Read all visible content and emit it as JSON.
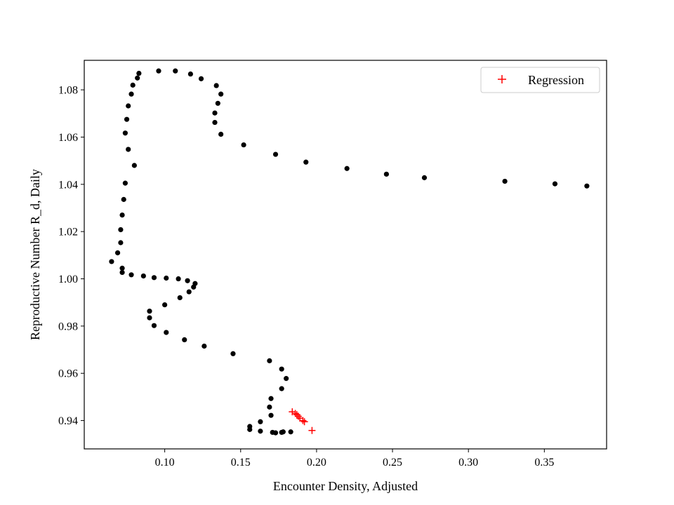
{
  "chart_data": {
    "type": "scatter",
    "xlabel": "Encounter Density, Adjusted",
    "ylabel": "Reproductive Number R_d, Daily",
    "xlim": [
      0.047,
      0.391
    ],
    "ylim": [
      0.928,
      1.0925
    ],
    "xticks": [
      0.1,
      0.15,
      0.2,
      0.25,
      0.3,
      0.35
    ],
    "xtick_labels": [
      "0.10",
      "0.15",
      "0.20",
      "0.25",
      "0.30",
      "0.35"
    ],
    "yticks": [
      0.94,
      0.96,
      0.98,
      1.0,
      1.02,
      1.04,
      1.06,
      1.08
    ],
    "ytick_labels": [
      "0.94",
      "0.96",
      "0.98",
      "1.00",
      "1.02",
      "1.04",
      "1.06",
      "1.08"
    ],
    "grid": false,
    "legend_position": "top-right",
    "series": [
      {
        "marker": "dot",
        "color": "#000000",
        "points": [
          [
            0.378,
            1.0393
          ],
          [
            0.357,
            1.0402
          ],
          [
            0.324,
            1.0413
          ],
          [
            0.271,
            1.0428
          ],
          [
            0.246,
            1.0443
          ],
          [
            0.22,
            1.0467
          ],
          [
            0.193,
            1.0494
          ],
          [
            0.173,
            1.0527
          ],
          [
            0.152,
            1.0567
          ],
          [
            0.137,
            1.0612
          ],
          [
            0.133,
            1.0662
          ],
          [
            0.133,
            1.0702
          ],
          [
            0.135,
            1.0743
          ],
          [
            0.137,
            1.0782
          ],
          [
            0.134,
            1.0818
          ],
          [
            0.124,
            1.0847
          ],
          [
            0.117,
            1.0867
          ],
          [
            0.107,
            1.088
          ],
          [
            0.096,
            1.088
          ],
          [
            0.083,
            1.087
          ],
          [
            0.082,
            1.085
          ],
          [
            0.079,
            1.082
          ],
          [
            0.078,
            1.0782
          ],
          [
            0.076,
            1.0732
          ],
          [
            0.075,
            1.0675
          ],
          [
            0.074,
            1.0617
          ],
          [
            0.076,
            1.0548
          ],
          [
            0.08,
            1.048
          ],
          [
            0.074,
            1.0405
          ],
          [
            0.073,
            1.0336
          ],
          [
            0.072,
            1.027
          ],
          [
            0.071,
            1.0208
          ],
          [
            0.071,
            1.0153
          ],
          [
            0.069,
            1.011
          ],
          [
            0.065,
            1.0073
          ],
          [
            0.072,
            1.0045
          ],
          [
            0.072,
            1.0027
          ],
          [
            0.078,
            1.0017
          ],
          [
            0.086,
            1.0012
          ],
          [
            0.093,
            1.0005
          ],
          [
            0.101,
            1.0003
          ],
          [
            0.109,
            1.0
          ],
          [
            0.115,
            0.9992
          ],
          [
            0.12,
            0.998
          ],
          [
            0.119,
            0.9965
          ],
          [
            0.116,
            0.9945
          ],
          [
            0.11,
            0.992
          ],
          [
            0.1,
            0.989
          ],
          [
            0.09,
            0.9863
          ],
          [
            0.09,
            0.9835
          ],
          [
            0.093,
            0.9802
          ],
          [
            0.101,
            0.9773
          ],
          [
            0.113,
            0.9742
          ],
          [
            0.126,
            0.9715
          ],
          [
            0.145,
            0.9683
          ],
          [
            0.169,
            0.9653
          ],
          [
            0.177,
            0.9618
          ],
          [
            0.18,
            0.9578
          ],
          [
            0.177,
            0.9535
          ],
          [
            0.17,
            0.9493
          ],
          [
            0.169,
            0.9457
          ],
          [
            0.17,
            0.9422
          ],
          [
            0.163,
            0.9395
          ],
          [
            0.156,
            0.9375
          ],
          [
            0.156,
            0.9362
          ],
          [
            0.163,
            0.9355
          ],
          [
            0.171,
            0.935
          ],
          [
            0.173,
            0.9348
          ],
          [
            0.177,
            0.935
          ],
          [
            0.178,
            0.9352
          ],
          [
            0.183,
            0.9352
          ]
        ]
      },
      {
        "name": "Regression",
        "marker": "plus",
        "color": "#ff0000",
        "points": [
          [
            0.184,
            0.9437
          ],
          [
            0.186,
            0.943
          ],
          [
            0.187,
            0.9425
          ],
          [
            0.188,
            0.9418
          ],
          [
            0.189,
            0.941
          ],
          [
            0.191,
            0.94
          ],
          [
            0.192,
            0.9395
          ],
          [
            0.197,
            0.9358
          ]
        ]
      }
    ]
  }
}
